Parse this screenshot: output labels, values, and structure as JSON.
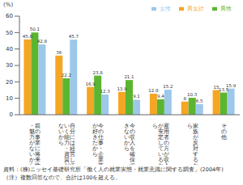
{
  "chart_data": {
    "type": "bar",
    "y_label": "(%)",
    "categories": [
      "親の事業に将来性・魅力がないから",
      "自分には経営していく能力・資質がないから",
      "今の仕事・企業等が好きだから",
      "今の収入を確保できないから",
      "雇用者の方が収入が安定しているから",
      "家族が反対するから",
      "その他"
    ],
    "series": [
      {
        "name": "男女計",
        "color": "#f5a623",
        "values": [
          45.8,
          36.0,
          16.9,
          13.9,
          12.8,
          8.0,
          15.0
        ]
      },
      {
        "name": "男性",
        "color": "#5bb531",
        "values": [
          50.1,
          22.2,
          23.8,
          21.1,
          9.4,
          10.3,
          13.5
        ]
      },
      {
        "name": "女性",
        "color": "#9dc8ea",
        "values": [
          42.8,
          45.7,
          12.3,
          9.1,
          15.2,
          6.5,
          15.9
        ]
      }
    ],
    "ylim": [
      0,
      60
    ],
    "yticks": [
      0,
      10,
      20,
      30,
      40,
      50,
      60
    ],
    "grid": false,
    "legend": "top-right",
    "data_labels": true,
    "notes": [
      "資料：(株)ニッセイ基礎研究所「働く人の就業実態・就業意識に関する調査」(2004年)",
      "（注）複数回答なので、合計は100を超える。"
    ]
  }
}
